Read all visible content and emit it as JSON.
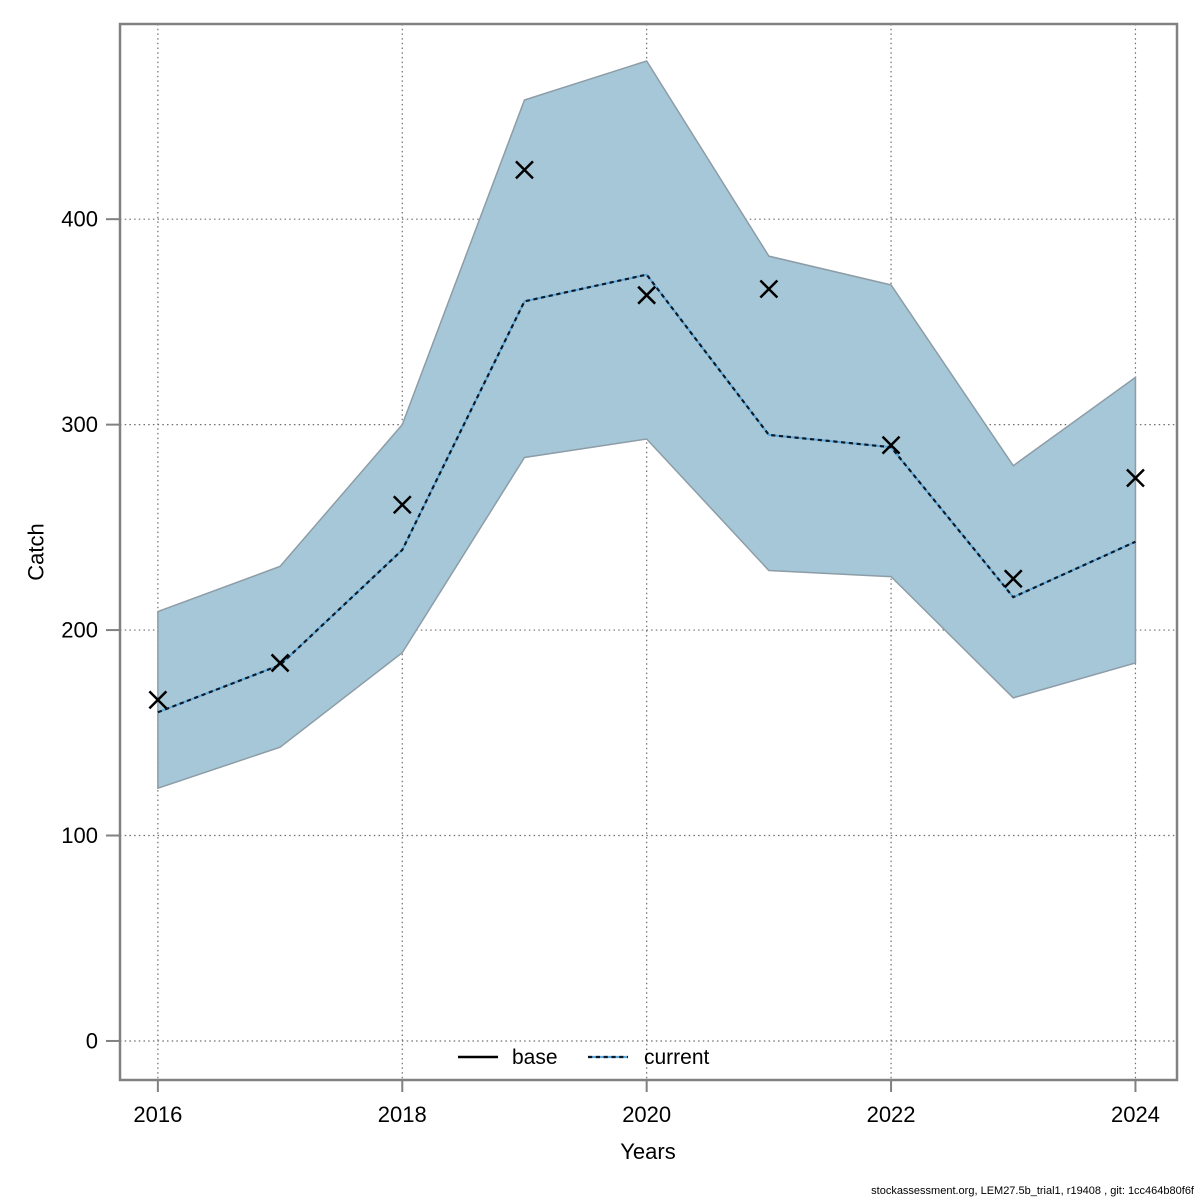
{
  "figure": {
    "background": "#ffffff"
  },
  "footer": {
    "text": "stockassessment.org, LEM27.5b_trial1, r19408 , git: 1cc464b80f6f"
  },
  "chart_data": {
    "type": "line",
    "title": "",
    "xlabel": "Years",
    "ylabel": "Catch",
    "x": [
      2016,
      2017,
      2018,
      2019,
      2020,
      2021,
      2022,
      2023,
      2024
    ],
    "series": [
      {
        "name": "base",
        "style": "x-markers",
        "color": "#000000",
        "values": [
          166,
          184,
          261,
          424,
          363,
          366,
          290,
          225,
          274
        ]
      },
      {
        "name": "current",
        "style": "dotted",
        "color": "#0c1b2a",
        "underlay_color": "#5ea9dc",
        "values": [
          160,
          183,
          239,
          360,
          373,
          295,
          289,
          216,
          243
        ]
      }
    ],
    "band": {
      "name": "current-confidence-band",
      "lower": [
        123,
        143,
        189,
        284,
        293,
        229,
        226,
        167,
        184
      ],
      "upper": [
        209,
        231,
        300,
        458,
        477,
        382,
        368,
        280,
        323
      ],
      "fill": "#a6c7d8",
      "edge": "#8d9da7"
    },
    "xlim": [
      2015.69,
      2024.34
    ],
    "ylim": [
      -19,
      495
    ],
    "xticks": [
      2016,
      2018,
      2020,
      2022,
      2024
    ],
    "xticklabels": [
      "2016",
      "2018",
      "2020",
      "2022",
      "2024"
    ],
    "yticks": [
      0,
      100,
      200,
      300,
      400
    ],
    "yticklabels": [
      "0",
      "100",
      "200",
      "300",
      "400"
    ],
    "grid": "dotted",
    "legend": [
      {
        "label": "base",
        "style": "solid-black"
      },
      {
        "label": "current",
        "style": "dotted-blue"
      }
    ],
    "legend_position": "bottom-center",
    "colors": {
      "grid": "#6e6e6e",
      "axis": "#818181",
      "text": "#000000"
    }
  }
}
